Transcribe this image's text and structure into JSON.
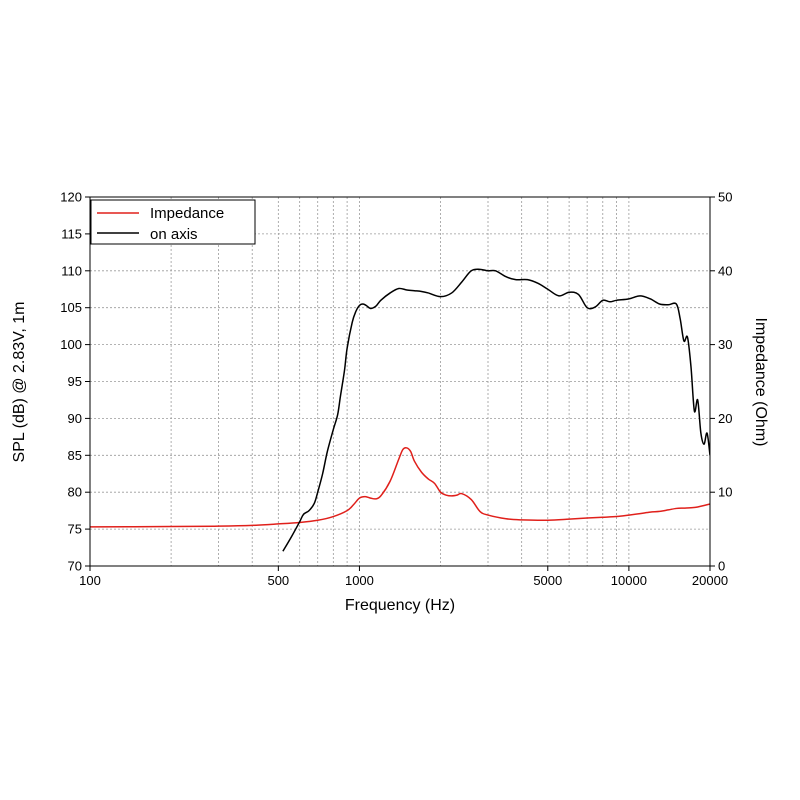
{
  "chart_data": {
    "type": "line",
    "xlabel": "Frequency (Hz)",
    "ylabel_left": "SPL (dB) @ 2.83V, 1m",
    "ylabel_right": "Impedance (Ohm)",
    "x_scale": "log",
    "xlim": [
      100,
      20000
    ],
    "ylim_left": [
      70,
      120
    ],
    "ylim_right": [
      0,
      50
    ],
    "x_ticks": [
      100,
      500,
      1000,
      5000,
      10000,
      20000
    ],
    "x_tick_labels": [
      "100",
      "500",
      "1000",
      "5000",
      "10000",
      "20000"
    ],
    "y_left_ticks": [
      70,
      75,
      80,
      85,
      90,
      95,
      100,
      105,
      110,
      115,
      120
    ],
    "y_left_tick_labels": [
      "70",
      "75",
      "80",
      "85",
      "90",
      "95",
      "100",
      "105",
      "110",
      "115",
      "120"
    ],
    "y_right_ticks": [
      0,
      10,
      20,
      30,
      40,
      50
    ],
    "y_right_tick_labels": [
      "0",
      "10",
      "20",
      "30",
      "40",
      "50"
    ],
    "grid": true,
    "legend": "top-left",
    "series": [
      {
        "name": "Impedance",
        "color": "#e0201b",
        "axis": "right",
        "x": [
          100,
          200,
          300,
          400,
          500,
          600,
          700,
          800,
          900,
          950,
          1000,
          1050,
          1100,
          1150,
          1200,
          1300,
          1400,
          1450,
          1500,
          1550,
          1600,
          1700,
          1800,
          1900,
          2000,
          2100,
          2200,
          2300,
          2400,
          2600,
          2800,
          3000,
          3500,
          4000,
          5000,
          6000,
          7000,
          8000,
          9000,
          10000,
          11000,
          12000,
          13000,
          14000,
          15000,
          16000,
          17000,
          18000,
          20000
        ],
        "y": [
          5.3,
          5.35,
          5.4,
          5.5,
          5.7,
          5.9,
          6.2,
          6.7,
          7.5,
          8.3,
          9.2,
          9.4,
          9.2,
          9.1,
          9.5,
          11.5,
          14.5,
          15.8,
          16.0,
          15.5,
          14.2,
          12.7,
          11.8,
          11.2,
          10.0,
          9.6,
          9.5,
          9.6,
          9.8,
          9.0,
          7.4,
          6.9,
          6.4,
          6.25,
          6.2,
          6.35,
          6.5,
          6.6,
          6.7,
          6.9,
          7.1,
          7.3,
          7.4,
          7.6,
          7.8,
          7.85,
          7.9,
          8.0,
          8.4
        ]
      },
      {
        "name": "on axis",
        "color": "#000000",
        "axis": "left",
        "x": [
          520,
          560,
          600,
          620,
          650,
          680,
          700,
          730,
          760,
          800,
          830,
          850,
          880,
          900,
          940,
          970,
          1000,
          1030,
          1060,
          1100,
          1150,
          1200,
          1300,
          1400,
          1500,
          1600,
          1700,
          1800,
          2000,
          2200,
          2400,
          2600,
          2800,
          3000,
          3200,
          3500,
          3800,
          4200,
          4600,
          5000,
          5500,
          6000,
          6500,
          7000,
          7500,
          8000,
          8500,
          9000,
          10000,
          11000,
          12000,
          13000,
          14000,
          15000,
          15500,
          16000,
          16500,
          17000,
          17500,
          18000,
          18500,
          19000,
          19500,
          20000
        ],
        "y": [
          72.0,
          74.0,
          76.0,
          77.0,
          77.5,
          78.5,
          80.0,
          82.5,
          85.5,
          88.5,
          90.5,
          93.0,
          96.5,
          99.5,
          103.0,
          104.5,
          105.3,
          105.5,
          105.3,
          104.9,
          105.2,
          106.0,
          107.0,
          107.6,
          107.4,
          107.3,
          107.2,
          107.0,
          106.5,
          107.0,
          108.5,
          110.0,
          110.2,
          110.0,
          110.0,
          109.2,
          108.8,
          108.8,
          108.3,
          107.5,
          106.6,
          107.1,
          106.8,
          105.0,
          105.1,
          106.0,
          105.8,
          106.0,
          106.2,
          106.6,
          106.2,
          105.5,
          105.4,
          105.5,
          103.5,
          100.5,
          101.0,
          97.0,
          91.0,
          92.5,
          88.0,
          86.5,
          88.0,
          85.0
        ]
      }
    ]
  }
}
